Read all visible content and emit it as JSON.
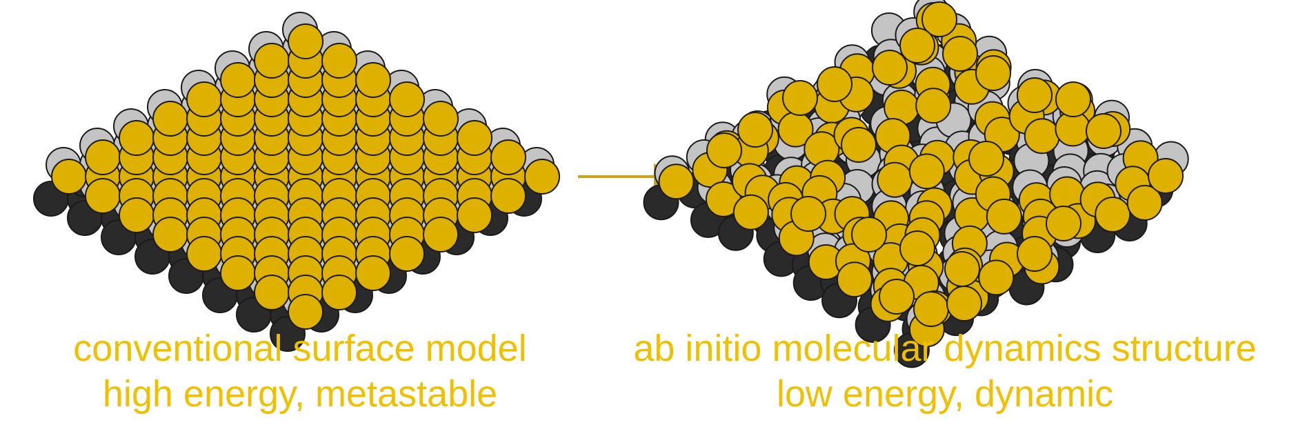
{
  "colors": {
    "gold_atom": "#deb000",
    "gray_atom": "#c4c4c4",
    "dark_atom": "#2a2a2a",
    "atom_outline": "#1a1a1a",
    "arrow": "#c9a21a",
    "caption_text": "#f0c000"
  },
  "left_panel": {
    "line1": "conventional surface model",
    "line2": "high energy, metastable"
  },
  "right_panel": {
    "line1": "ab initio molecular dynamics structure",
    "line2": "low energy, dynamic"
  },
  "arrow": {
    "direction": "right"
  }
}
